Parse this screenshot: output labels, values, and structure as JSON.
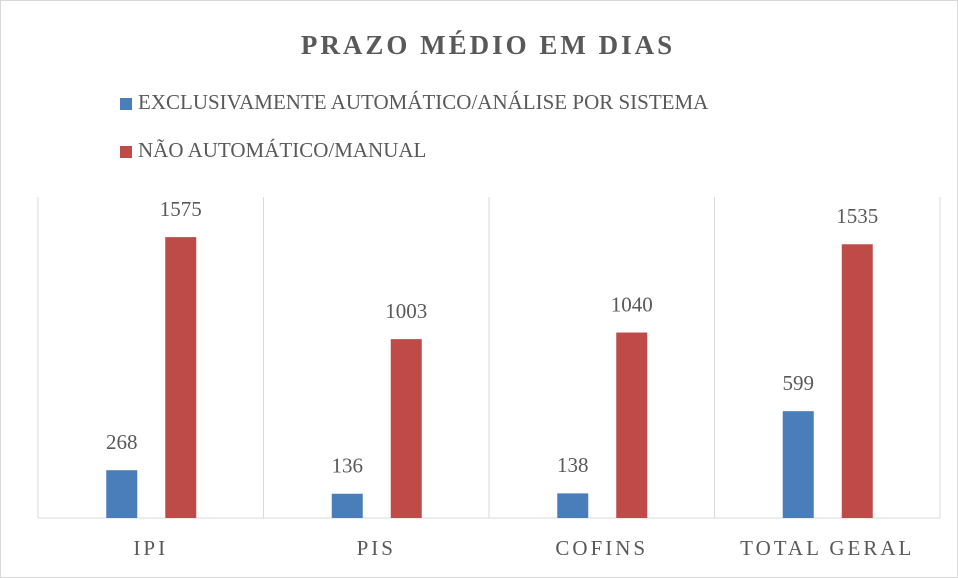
{
  "chart_data": {
    "type": "bar",
    "title": "PRAZO MÉDIO EM DIAS",
    "categories": [
      "IPI",
      "PIS",
      "COFINS",
      "TOTAL GERAL"
    ],
    "series": [
      {
        "name": "EXCLUSIVAMENTE AUTOMÁTICO/ANÁLISE POR SISTEMA",
        "color": "#4a7ebb",
        "values": [
          268,
          136,
          138,
          599
        ]
      },
      {
        "name": "NÃO AUTOMÁTICO/MANUAL",
        "color": "#be4b48",
        "values": [
          1575,
          1003,
          1040,
          1535
        ]
      }
    ],
    "ylim": [
      0,
      1800
    ],
    "legend": "top",
    "grid": false
  }
}
